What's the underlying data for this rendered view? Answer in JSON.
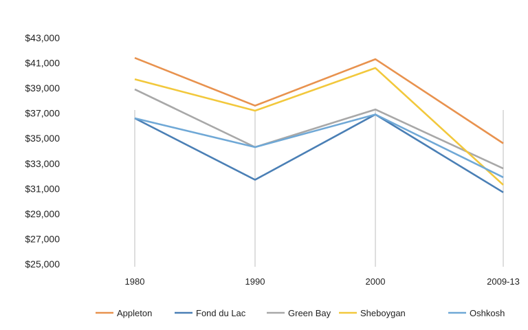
{
  "chart_data": {
    "type": "line",
    "title": "",
    "xlabel": "",
    "ylabel": "",
    "categories": [
      "1980",
      "1990",
      "2000",
      "2009-13"
    ],
    "y_ticks": [
      "$25,000",
      "$27,000",
      "$29,000",
      "$31,000",
      "$33,000",
      "$35,000",
      "$37,000",
      "$39,000",
      "$41,000",
      "$43,000"
    ],
    "ylim": [
      25000,
      43000
    ],
    "grid": "vertical lines at categories",
    "legend_position": "bottom",
    "series": [
      {
        "name": "Appleton",
        "color": "#E8924E",
        "values": [
          41400,
          37600,
          41300,
          34600
        ]
      },
      {
        "name": "Fond du Lac",
        "color": "#4A7FB5",
        "values": [
          36600,
          31700,
          36900,
          30700
        ]
      },
      {
        "name": "Green Bay",
        "color": "#A8A8A8",
        "values": [
          38900,
          34300,
          37300,
          32600
        ]
      },
      {
        "name": "Sheboygan",
        "color": "#F2C83C",
        "values": [
          39700,
          37200,
          40600,
          31300
        ]
      },
      {
        "name": "Oshkosh",
        "color": "#6FA8D6",
        "values": [
          36600,
          34300,
          36900,
          31900
        ]
      }
    ]
  }
}
